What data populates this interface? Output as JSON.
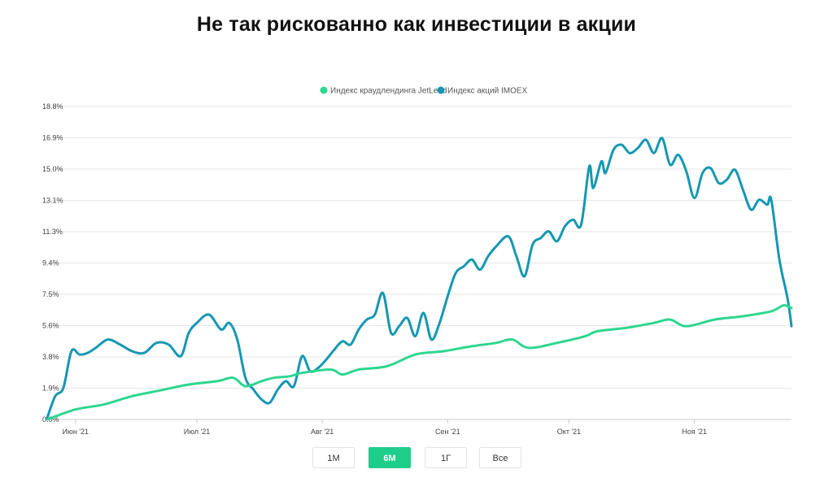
{
  "header": {
    "title": "Не так рискованно как инвестиции в акции"
  },
  "colors": {
    "jetlend": "#2ed68f",
    "imoex": "#1597b2",
    "active_button": "#1fcd8a",
    "grid": "#e6e6e6"
  },
  "range_buttons": [
    {
      "label": "1М",
      "active": false
    },
    {
      "label": "6М",
      "active": true
    },
    {
      "label": "1Г",
      "active": false
    },
    {
      "label": "Все",
      "active": false
    }
  ],
  "chart_data": {
    "type": "line",
    "title": "",
    "xlabel": "",
    "ylabel": "",
    "legend_position": "top-center",
    "grid": true,
    "ylim": [
      0,
      18.8
    ],
    "y_ticks": [
      "0.0%",
      "1.9%",
      "3.8%",
      "5.6%",
      "7.5%",
      "9.4%",
      "11.3%",
      "13.1%",
      "15.0%",
      "16.9%",
      "18.8%"
    ],
    "y_tick_values": [
      0,
      1.88,
      3.76,
      5.64,
      7.52,
      9.4,
      11.28,
      13.16,
      15.04,
      16.92,
      18.8
    ],
    "x_ticks": [
      "Июн '21",
      "Июл '21",
      "Авг '21",
      "Сен '21",
      "Окт '21",
      "Ноя '21"
    ],
    "x_tick_dates": [
      "2021-06-01",
      "2021-07-01",
      "2021-08-01",
      "2021-09-01",
      "2021-10-01",
      "2021-11-01"
    ],
    "x_range": [
      "2021-05-25",
      "2021-11-25"
    ],
    "series": [
      {
        "name": "Индекс краудлендинга JetLend",
        "x": [
          "2021-05-25",
          "2021-06-01",
          "2021-06-08",
          "2021-06-15",
          "2021-06-22",
          "2021-06-29",
          "2021-07-06",
          "2021-07-10",
          "2021-07-13",
          "2021-07-17",
          "2021-07-20",
          "2021-07-24",
          "2021-07-27",
          "2021-08-03",
          "2021-08-06",
          "2021-08-10",
          "2021-08-17",
          "2021-08-24",
          "2021-08-31",
          "2021-09-07",
          "2021-09-13",
          "2021-09-17",
          "2021-09-21",
          "2021-09-28",
          "2021-10-05",
          "2021-10-08",
          "2021-10-15",
          "2021-10-22",
          "2021-10-26",
          "2021-10-30",
          "2021-11-06",
          "2021-11-13",
          "2021-11-20",
          "2021-11-23",
          "2021-11-25"
        ],
        "values": [
          0.0,
          0.6,
          0.9,
          1.4,
          1.75,
          2.1,
          2.3,
          2.5,
          2.0,
          2.3,
          2.5,
          2.6,
          2.8,
          3.0,
          2.7,
          3.0,
          3.2,
          3.9,
          4.1,
          4.4,
          4.6,
          4.8,
          4.3,
          4.6,
          5.0,
          5.3,
          5.5,
          5.8,
          6.0,
          5.6,
          6.0,
          6.2,
          6.5,
          6.85,
          6.7
        ]
      },
      {
        "name": "Индекс акций IMOEX",
        "x": [
          "2021-05-25",
          "2021-05-27",
          "2021-05-29",
          "2021-05-31",
          "2021-06-02",
          "2021-06-04",
          "2021-06-06",
          "2021-06-09",
          "2021-06-12",
          "2021-06-15",
          "2021-06-18",
          "2021-06-21",
          "2021-06-24",
          "2021-06-27",
          "2021-06-29",
          "2021-07-01",
          "2021-07-04",
          "2021-07-07",
          "2021-07-09",
          "2021-07-11",
          "2021-07-13",
          "2021-07-15",
          "2021-07-17",
          "2021-07-19",
          "2021-07-21",
          "2021-07-23",
          "2021-07-25",
          "2021-07-27",
          "2021-07-29",
          "2021-07-31",
          "2021-08-02",
          "2021-08-04",
          "2021-08-06",
          "2021-08-08",
          "2021-08-10",
          "2021-08-12",
          "2021-08-14",
          "2021-08-16",
          "2021-08-18",
          "2021-08-20",
          "2021-08-22",
          "2021-08-24",
          "2021-08-26",
          "2021-08-28",
          "2021-08-30",
          "2021-09-01",
          "2021-09-03",
          "2021-09-05",
          "2021-09-07",
          "2021-09-09",
          "2021-09-11",
          "2021-09-13",
          "2021-09-16",
          "2021-09-18",
          "2021-09-20",
          "2021-09-22",
          "2021-09-24",
          "2021-09-26",
          "2021-09-28",
          "2021-09-30",
          "2021-10-02",
          "2021-10-04",
          "2021-10-06",
          "2021-10-07",
          "2021-10-09",
          "2021-10-10",
          "2021-10-12",
          "2021-10-14",
          "2021-10-16",
          "2021-10-18",
          "2021-10-20",
          "2021-10-22",
          "2021-10-24",
          "2021-10-26",
          "2021-10-28",
          "2021-10-30",
          "2021-11-01",
          "2021-11-03",
          "2021-11-05",
          "2021-11-07",
          "2021-11-09",
          "2021-11-11",
          "2021-11-13",
          "2021-11-15",
          "2021-11-17",
          "2021-11-19",
          "2021-11-20",
          "2021-11-22",
          "2021-11-24",
          "2021-11-25"
        ],
        "values": [
          0.1,
          1.4,
          1.9,
          4.1,
          3.9,
          4.0,
          4.3,
          4.8,
          4.5,
          4.1,
          4.0,
          4.6,
          4.5,
          3.8,
          5.2,
          5.8,
          6.3,
          5.4,
          5.8,
          4.8,
          2.5,
          1.8,
          1.2,
          1.0,
          1.8,
          2.3,
          2.0,
          3.8,
          2.9,
          3.1,
          3.6,
          4.2,
          4.7,
          4.5,
          5.4,
          6.0,
          6.3,
          7.6,
          5.2,
          5.6,
          6.1,
          5.0,
          6.4,
          4.8,
          5.8,
          7.4,
          8.8,
          9.2,
          9.6,
          9.0,
          9.8,
          10.4,
          11.0,
          9.8,
          8.6,
          10.5,
          10.9,
          11.3,
          10.7,
          11.6,
          12.0,
          11.7,
          15.2,
          13.9,
          15.5,
          14.8,
          16.2,
          16.5,
          16.0,
          16.3,
          16.8,
          16.0,
          16.9,
          15.3,
          15.9,
          14.9,
          13.3,
          14.8,
          15.1,
          14.2,
          14.4,
          15.0,
          13.8,
          12.6,
          13.2,
          12.9,
          13.2,
          9.6,
          7.3,
          5.6
        ]
      }
    ]
  }
}
